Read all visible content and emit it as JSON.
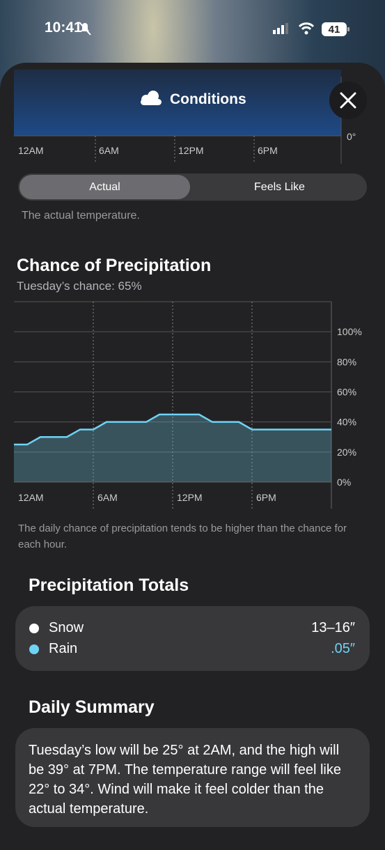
{
  "status_bar": {
    "time": "10:41",
    "battery": "41"
  },
  "header": {
    "title": "Conditions"
  },
  "temperature_chart": {
    "xticks": [
      "12AM",
      "6AM",
      "12PM",
      "6PM"
    ],
    "y_label": "0°"
  },
  "toggle": {
    "options": [
      "Actual",
      "Feels Like"
    ],
    "note": "The actual temperature."
  },
  "precipitation": {
    "title": "Chance of Precipitation",
    "subtitle": "Tuesday’s chance: 65%",
    "chart_data": {
      "type": "area",
      "color": "#6fd3f5",
      "x": [
        0,
        1,
        2,
        3,
        4,
        5,
        6,
        7,
        8,
        9,
        10,
        11,
        12,
        13,
        14,
        15,
        16,
        17,
        18,
        19,
        20,
        21,
        22,
        23,
        24
      ],
      "values": [
        25,
        25,
        30,
        30,
        30,
        35,
        35,
        40,
        40,
        40,
        40,
        45,
        45,
        45,
        45,
        40,
        40,
        40,
        35,
        35,
        35,
        35,
        35,
        35,
        35
      ],
      "xlim": [
        0,
        24
      ],
      "xticks": [
        {
          "value": 0,
          "label": "12AM"
        },
        {
          "value": 6,
          "label": "6AM"
        },
        {
          "value": 12,
          "label": "12PM"
        },
        {
          "value": 18,
          "label": "6PM"
        }
      ],
      "ylim": [
        0,
        120
      ],
      "yticks": [
        {
          "value": 0,
          "label": "0%"
        },
        {
          "value": 20,
          "label": "20%"
        },
        {
          "value": 40,
          "label": "40%"
        },
        {
          "value": 60,
          "label": "60%"
        },
        {
          "value": 80,
          "label": "80%"
        },
        {
          "value": 100,
          "label": "100%"
        }
      ],
      "grid": true
    },
    "note": "The daily chance of precipitation tends to be higher than the chance for each hour."
  },
  "totals": {
    "title": "Precipitation Totals",
    "items": [
      {
        "name": "Snow",
        "value": "13–16″"
      },
      {
        "name": "Rain",
        "value": ".05″"
      }
    ]
  },
  "summary": {
    "title": "Daily Summary",
    "text": "Tuesday’s low will be 25° at 2AM, and the high will be 39° at 7PM. The temperature range will feel like 22° to 34°. Wind will make it feel colder than the actual temperature."
  }
}
